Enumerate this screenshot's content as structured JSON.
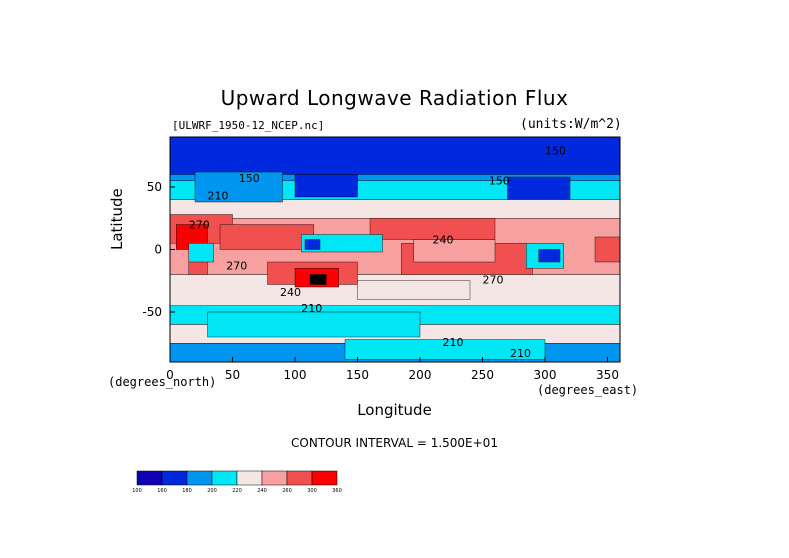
{
  "chart_data": {
    "type": "heatmap",
    "title": "Upward Longwave Radiation Flux",
    "file_label": "[ULWRF_1950-12_NCEP.nc]",
    "units_label": "(units:W/m^2)",
    "xlabel": "Longitude",
    "ylabel": "Latitude",
    "x_unit_label": "(degrees_east)",
    "y_unit_label": "(degrees_north)",
    "xlim": [
      0,
      360
    ],
    "ylim": [
      -90,
      90
    ],
    "x_ticks": [
      0,
      50,
      100,
      150,
      200,
      250,
      300,
      350
    ],
    "y_ticks": [
      50,
      0,
      -50
    ],
    "contour_interval_text": "CONTOUR INTERVAL = 1.500E+01",
    "colorbar": {
      "levels": [
        100,
        160,
        180,
        200,
        220,
        240,
        260,
        300,
        360
      ],
      "colors": [
        "#0f00b4",
        "#0028dc",
        "#0096f0",
        "#00e6f5",
        "#f5e6e6",
        "#f7a0a0",
        "#f05050",
        "#fa0000"
      ]
    },
    "contour_labels": [
      {
        "text": "150",
        "lon": 55,
        "lat": 54
      },
      {
        "text": "210",
        "lon": 30,
        "lat": 40
      },
      {
        "text": "270",
        "lon": 15,
        "lat": 17
      },
      {
        "text": "270",
        "lon": 45,
        "lat": -16
      },
      {
        "text": "240",
        "lon": 88,
        "lat": -37
      },
      {
        "text": "210",
        "lon": 105,
        "lat": -50
      },
      {
        "text": "240",
        "lon": 210,
        "lat": 5
      },
      {
        "text": "270",
        "lon": 250,
        "lat": -27
      },
      {
        "text": "210",
        "lon": 218,
        "lat": -77
      },
      {
        "text": "210",
        "lon": 272,
        "lat": -86
      },
      {
        "text": "150",
        "lon": 255,
        "lat": 52
      },
      {
        "text": "150",
        "lon": 300,
        "lat": 76
      }
    ],
    "regions": [
      {
        "lat": [
          68,
          90
        ],
        "lon": [
          0,
          360
        ],
        "level": 1
      },
      {
        "lat": [
          55,
          68
        ],
        "lon": [
          0,
          360
        ],
        "level": 2
      },
      {
        "lat": [
          40,
          55
        ],
        "lon": [
          0,
          360
        ],
        "level": 3
      },
      {
        "lat": [
          25,
          40
        ],
        "lon": [
          0,
          360
        ],
        "level": 4
      },
      {
        "lat": [
          -20,
          25
        ],
        "lon": [
          0,
          360
        ],
        "level": 5
      },
      {
        "lat": [
          -45,
          -20
        ],
        "lon": [
          0,
          360
        ],
        "level": 4
      },
      {
        "lat": [
          -60,
          -45
        ],
        "lon": [
          0,
          360
        ],
        "level": 3
      },
      {
        "lat": [
          -75,
          -60
        ],
        "lon": [
          0,
          360
        ],
        "level": 4
      },
      {
        "lat": [
          -90,
          -75
        ],
        "lon": [
          0,
          360
        ],
        "level": 2
      },
      {
        "lat": [
          60,
          90
        ],
        "lon": [
          0,
          360
        ],
        "level": 1
      },
      {
        "lat": [
          38,
          62
        ],
        "lon": [
          20,
          90
        ],
        "level": 2
      },
      {
        "lat": [
          42,
          60
        ],
        "lon": [
          100,
          150
        ],
        "level": 1
      },
      {
        "lat": [
          40,
          58
        ],
        "lon": [
          270,
          320
        ],
        "level": 1
      },
      {
        "lat": [
          5,
          28
        ],
        "lon": [
          0,
          50
        ],
        "level": 6
      },
      {
        "lat": [
          0,
          20
        ],
        "lon": [
          40,
          115
        ],
        "level": 6
      },
      {
        "lat": [
          8,
          25
        ],
        "lon": [
          160,
          260
        ],
        "level": 6
      },
      {
        "lat": [
          -20,
          5
        ],
        "lon": [
          185,
          290
        ],
        "level": 6
      },
      {
        "lat": [
          -28,
          -10
        ],
        "lon": [
          78,
          150
        ],
        "level": 6
      },
      {
        "lat": [
          -10,
          10
        ],
        "lon": [
          340,
          360
        ],
        "level": 6
      },
      {
        "lat": [
          -20,
          5
        ],
        "lon": [
          15,
          30
        ],
        "level": 6
      },
      {
        "lat": [
          -30,
          -15
        ],
        "lon": [
          100,
          135
        ],
        "level": 7
      },
      {
        "lat": [
          -28,
          -20
        ],
        "lon": [
          112,
          125
        ],
        "level": 8
      },
      {
        "lat": [
          0,
          20
        ],
        "lon": [
          5,
          30
        ],
        "level": 7
      },
      {
        "lat": [
          -10,
          8
        ],
        "lon": [
          195,
          260
        ],
        "level": 5
      },
      {
        "lat": [
          -2,
          12
        ],
        "lon": [
          105,
          170
        ],
        "level": 3
      },
      {
        "lat": [
          0,
          8
        ],
        "lon": [
          108,
          120
        ],
        "level": 1
      },
      {
        "lat": [
          -15,
          5
        ],
        "lon": [
          285,
          315
        ],
        "level": 3
      },
      {
        "lat": [
          -10,
          0
        ],
        "lon": [
          295,
          312
        ],
        "level": 1
      },
      {
        "lat": [
          -10,
          5
        ],
        "lon": [
          15,
          35
        ],
        "level": 3
      },
      {
        "lat": [
          -40,
          -25
        ],
        "lon": [
          150,
          240
        ],
        "level": 4
      },
      {
        "lat": [
          -70,
          -50
        ],
        "lon": [
          30,
          200
        ],
        "level": 3
      },
      {
        "lat": [
          -88,
          -72
        ],
        "lon": [
          140,
          300
        ],
        "level": 3
      }
    ],
    "grid": false
  }
}
